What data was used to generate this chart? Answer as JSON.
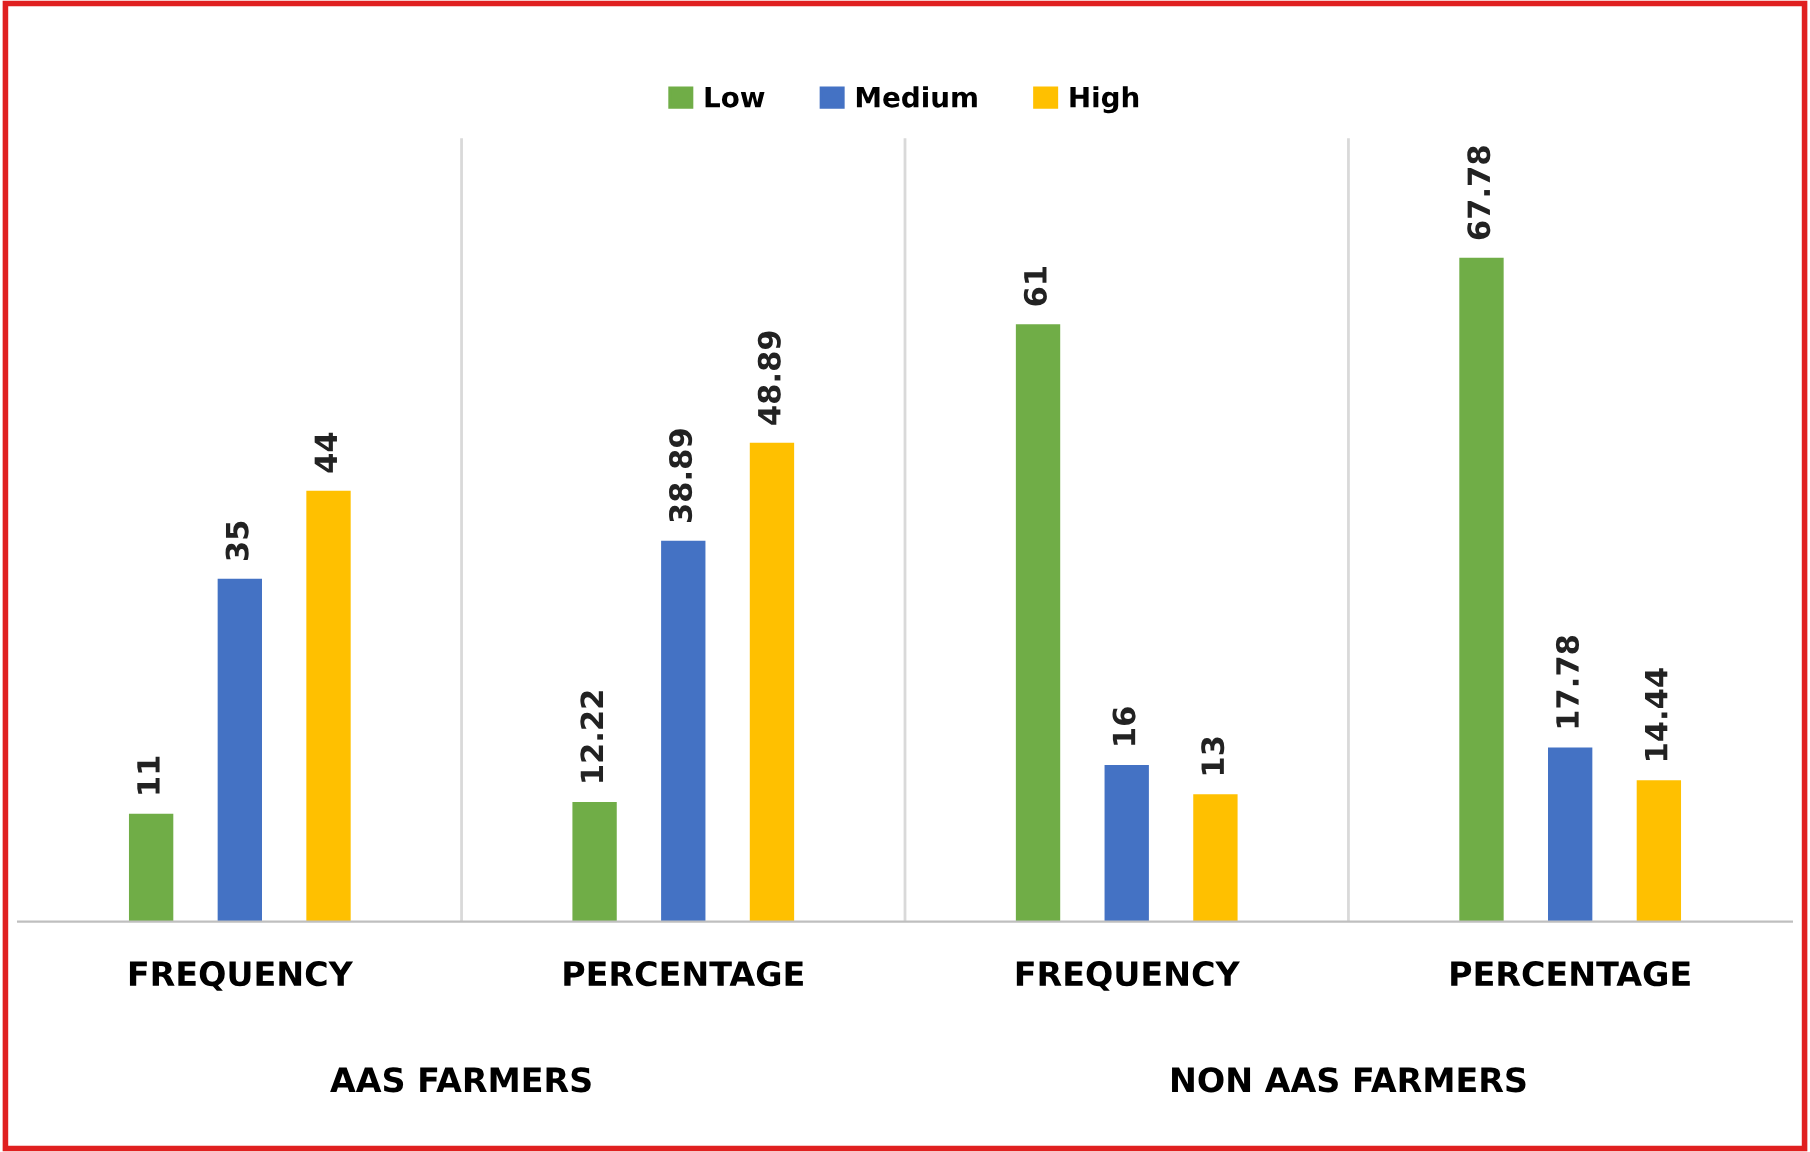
{
  "chart_data": {
    "type": "bar",
    "categories": [
      "FREQUENCY",
      "PERCENTAGE",
      "FREQUENCY",
      "PERCENTAGE"
    ],
    "series": [
      {
        "name": "Low",
        "color": "#70ad47",
        "values": [
          11,
          12.22,
          61,
          67.78
        ]
      },
      {
        "name": "Medium",
        "color": "#4472c4",
        "values": [
          35,
          38.89,
          16,
          17.78
        ]
      },
      {
        "name": "High",
        "color": "#ffc000",
        "values": [
          44,
          48.89,
          13,
          14.44
        ]
      }
    ],
    "data_labels": true,
    "legend": "top",
    "grid": false,
    "annotations": [
      "AAS FARMERS",
      "NON AAS FARMERS"
    ]
  }
}
